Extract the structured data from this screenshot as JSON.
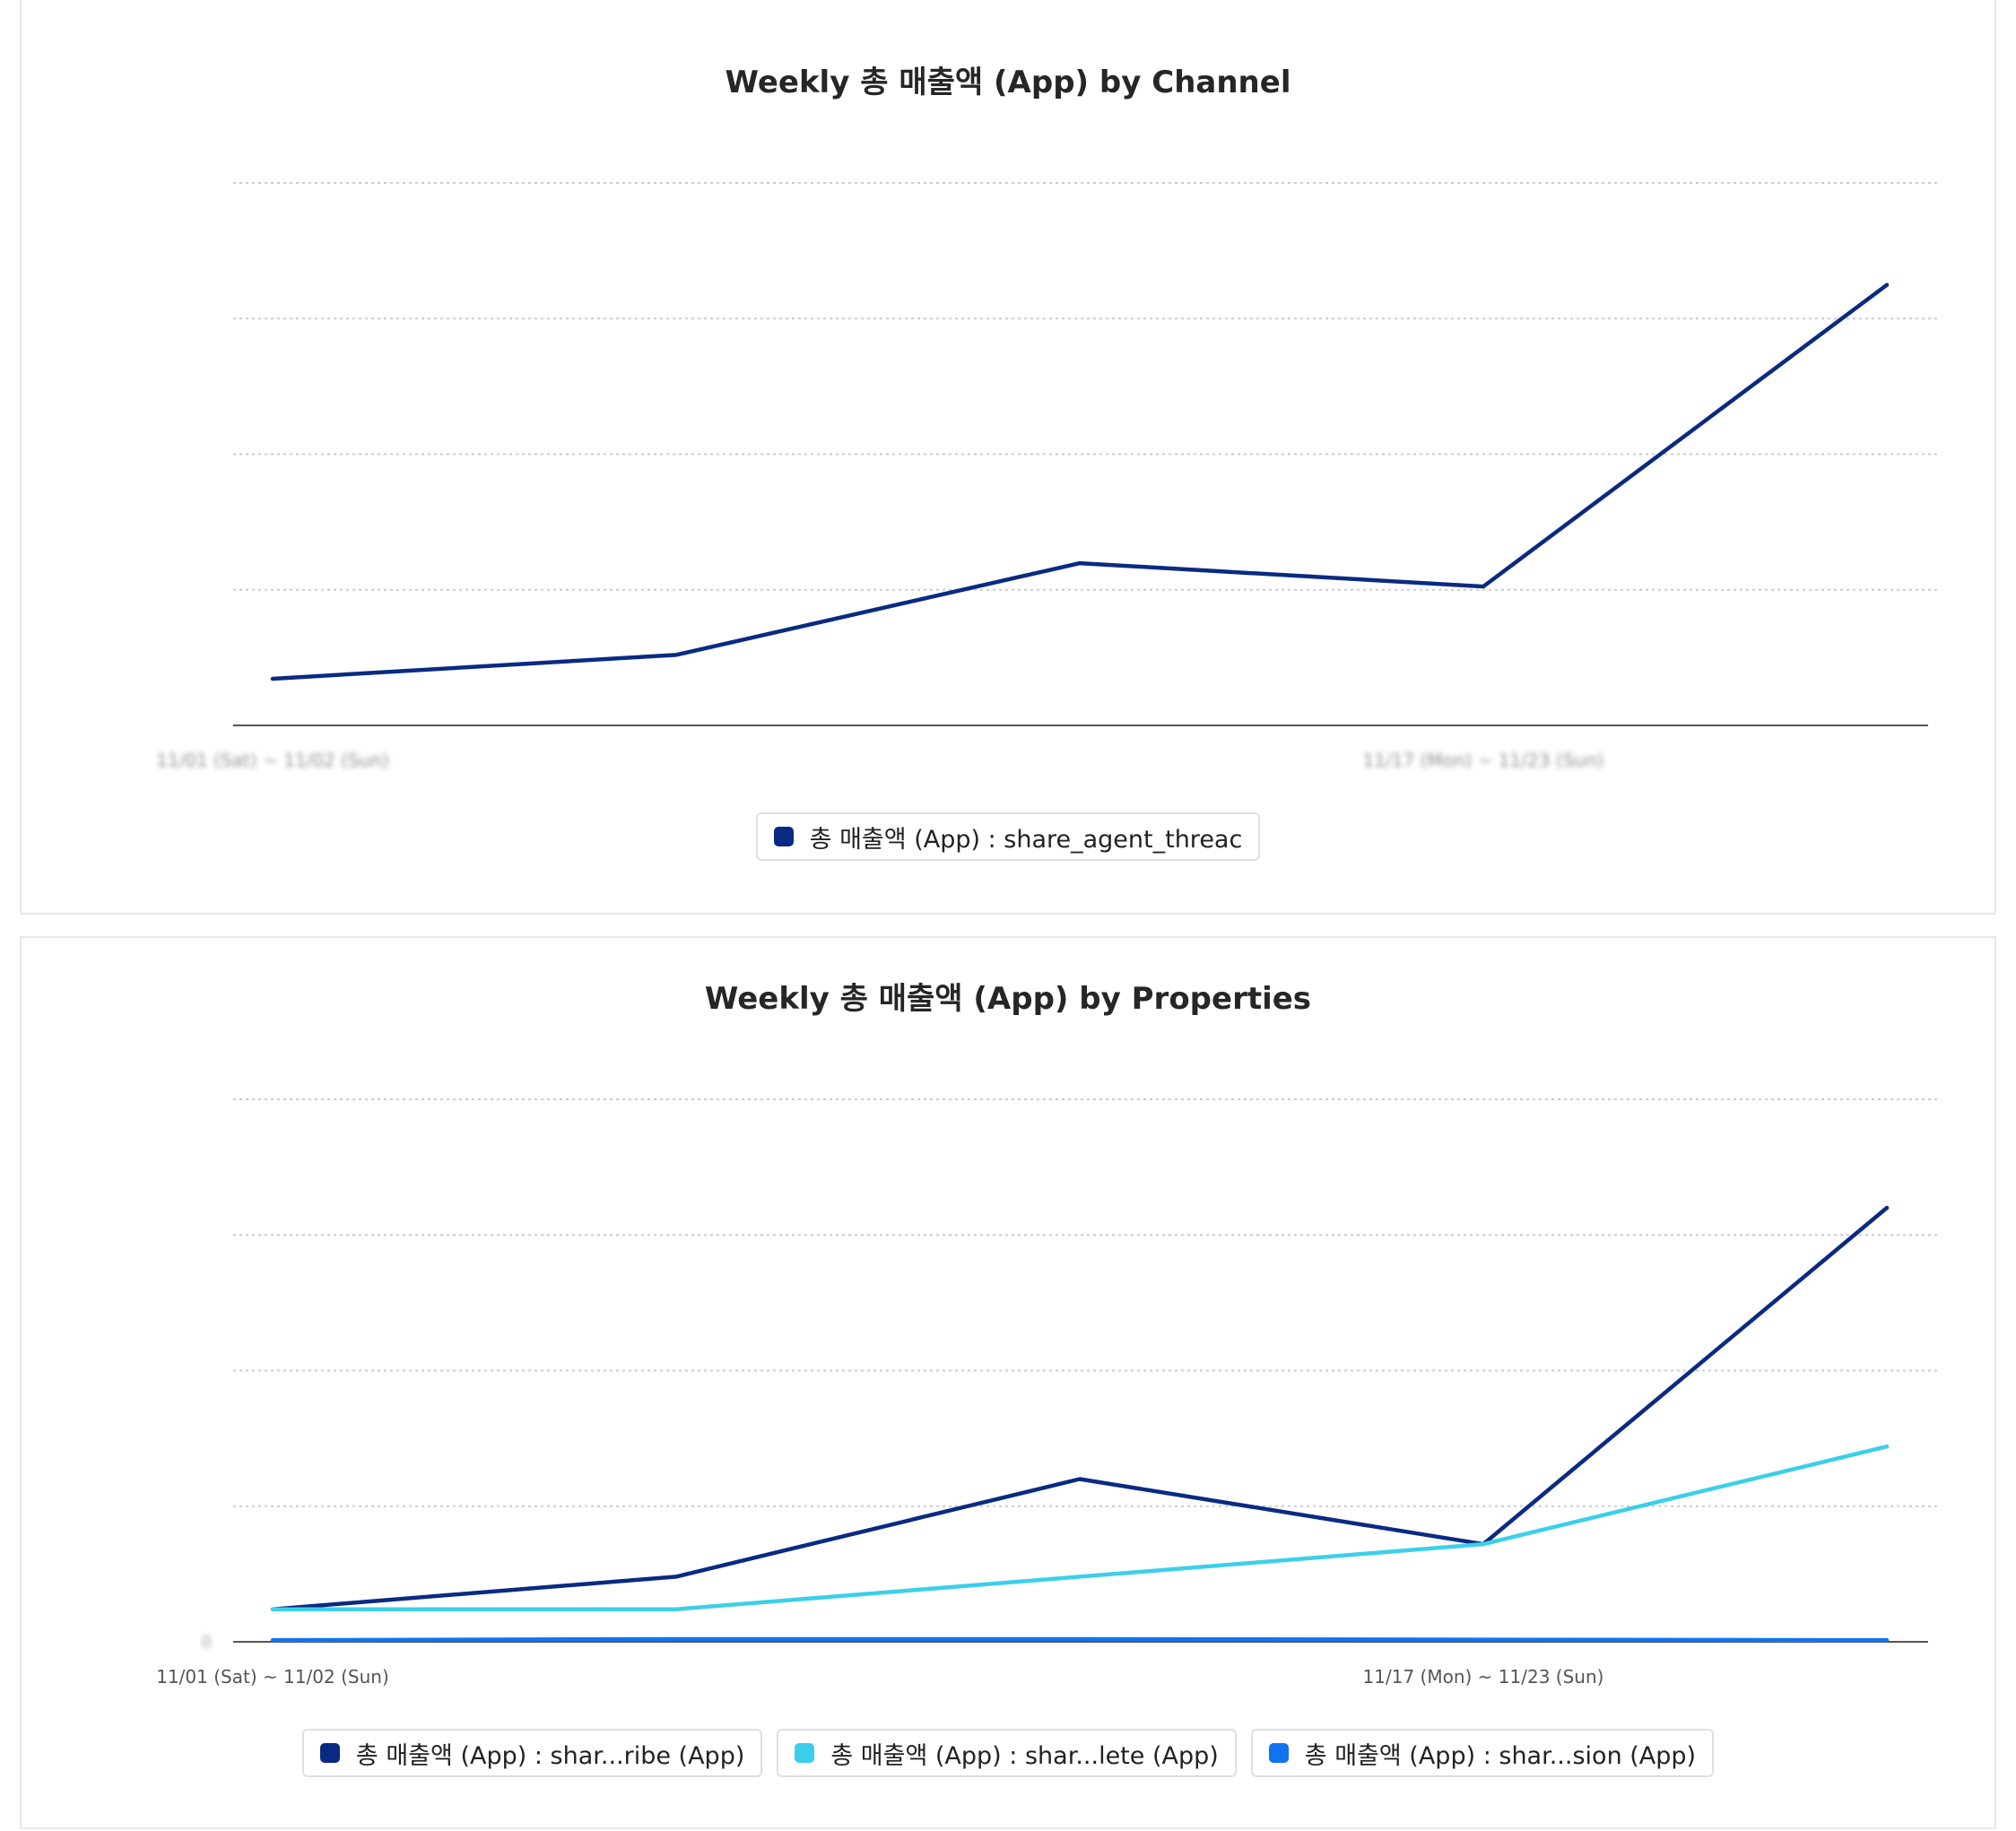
{
  "panels": [
    {
      "title": "Weekly 총 매출액 (App) by Channel",
      "legend": [
        {
          "label": "총 매출액 (App) : share_agent_threac",
          "color": "#0a2a82"
        }
      ],
      "chart_data": {
        "type": "line",
        "title": "Weekly 총 매출액 (App) by Channel",
        "x_tick_labels": [
          "11/01 (Sat) ~ 11/02 (Sun)",
          "11/17 (Mon) ~ 11/23 (Sun)"
        ],
        "x_tick_index": [
          0,
          3
        ],
        "y_tick_labels": [
          "",
          "",
          "",
          "",
          ""
        ],
        "ylabel": "",
        "ylim": [
          0,
          100
        ],
        "yticks": [
          0,
          25,
          50,
          75,
          100
        ],
        "grid": true,
        "legend_position": "bottom",
        "series": [
          {
            "name": "총 매출액 (App) : share_agent_threac",
            "color": "#0a2a82",
            "values": [
              8.6,
              13.0,
              29.9,
              25.6,
              81.2
            ]
          }
        ]
      }
    },
    {
      "title": "Weekly 총 매출액 (App) by Properties",
      "legend": [
        {
          "label": "총 매출액 (App) : shar...ribe (App)",
          "color": "#0a2a82"
        },
        {
          "label": "총 매출액 (App) : shar...lete (App)",
          "color": "#3ccfe9"
        },
        {
          "label": "총 매출액 (App) : shar...sion (App)",
          "color": "#1273f0"
        }
      ],
      "chart_data": {
        "type": "line",
        "title": "Weekly 총 매출액 (App) by Properties",
        "x_tick_labels": [
          "11/01 (Sat) ~ 11/02 (Sun)",
          "11/17 (Mon) ~ 11/23 (Sun)"
        ],
        "x_tick_index": [
          0,
          3
        ],
        "y_tick_labels": [
          "0",
          "",
          "",
          "",
          ""
        ],
        "ylabel": "",
        "ylim": [
          0,
          100
        ],
        "yticks": [
          0,
          25,
          50,
          75,
          100
        ],
        "grid": true,
        "legend_position": "bottom",
        "series": [
          {
            "name": "총 매출액 (App) : shar...ribe (App)",
            "color": "#0a2a82",
            "values": [
              6.0,
              12.0,
              30.0,
              18.0,
              80.0
            ]
          },
          {
            "name": "총 매출액 (App) : shar...lete (App)",
            "color": "#3ccfe9",
            "values": [
              6.0,
              6.0,
              12.0,
              18.0,
              36.0
            ]
          },
          {
            "name": "총 매출액 (App) : shar...sion (App)",
            "color": "#1273f0",
            "values": [
              0.3,
              0.5,
              0.5,
              0.4,
              0.3
            ]
          }
        ]
      }
    }
  ]
}
